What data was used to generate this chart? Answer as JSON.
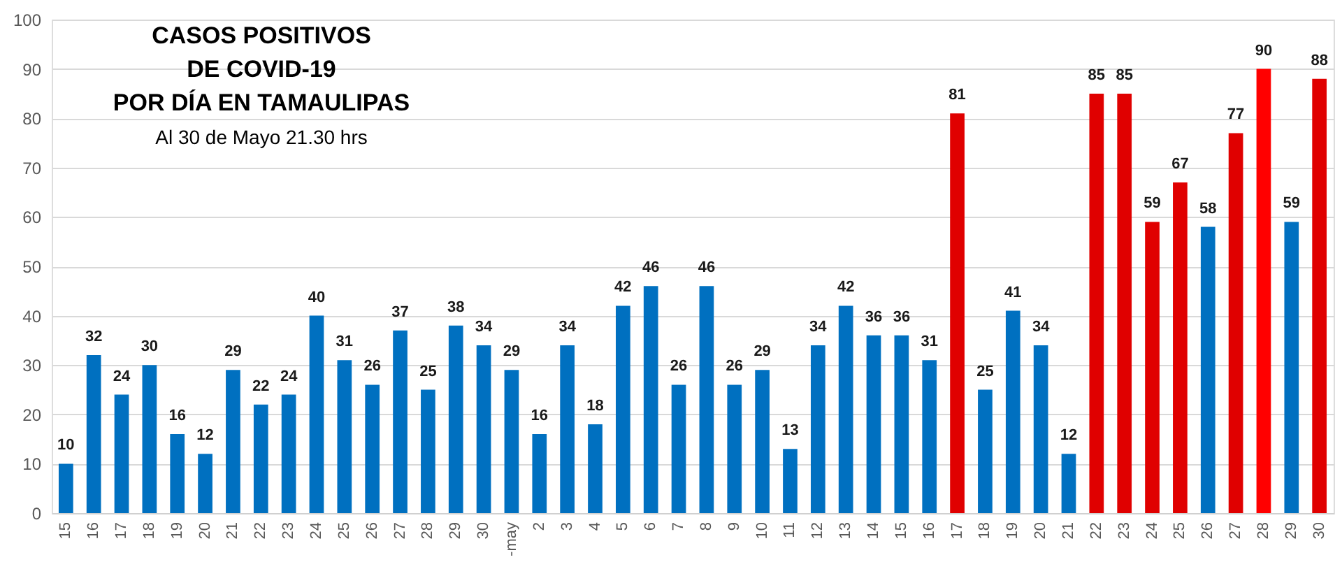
{
  "chart_data": {
    "type": "bar",
    "title": "CASOS POSITIVOS\nDE COVID-19\nPOR DÍA EN TAMAULIPAS",
    "subtitle": "Al 30 de Mayo 21.30 hrs",
    "categories": [
      "15",
      "16",
      "17",
      "18",
      "19",
      "20",
      "21",
      "22",
      "23",
      "24",
      "25",
      "26",
      "27",
      "28",
      "29",
      "30",
      "-may",
      "2",
      "3",
      "4",
      "5",
      "6",
      "7",
      "8",
      "9",
      "10",
      "11",
      "12",
      "13",
      "14",
      "15",
      "16",
      "17",
      "18",
      "19",
      "20",
      "21",
      "22",
      "23",
      "24",
      "25",
      "26",
      "27",
      "28",
      "29",
      "30"
    ],
    "values": [
      10,
      32,
      24,
      30,
      16,
      12,
      29,
      22,
      24,
      40,
      31,
      26,
      37,
      25,
      38,
      34,
      29,
      16,
      34,
      18,
      42,
      46,
      26,
      46,
      26,
      29,
      13,
      34,
      42,
      36,
      36,
      31,
      81,
      25,
      41,
      34,
      12,
      85,
      85,
      59,
      67,
      58,
      77,
      90,
      59,
      88
    ],
    "colors": [
      "#0070c0",
      "#0070c0",
      "#0070c0",
      "#0070c0",
      "#0070c0",
      "#0070c0",
      "#0070c0",
      "#0070c0",
      "#0070c0",
      "#0070c0",
      "#0070c0",
      "#0070c0",
      "#0070c0",
      "#0070c0",
      "#0070c0",
      "#0070c0",
      "#0070c0",
      "#0070c0",
      "#0070c0",
      "#0070c0",
      "#0070c0",
      "#0070c0",
      "#0070c0",
      "#0070c0",
      "#0070c0",
      "#0070c0",
      "#0070c0",
      "#0070c0",
      "#0070c0",
      "#0070c0",
      "#0070c0",
      "#0070c0",
      "#e00000",
      "#0070c0",
      "#0070c0",
      "#0070c0",
      "#0070c0",
      "#e00000",
      "#e00000",
      "#e00000",
      "#e00000",
      "#0070c0",
      "#e00000",
      "#ff0000",
      "#0070c0",
      "#e00000"
    ],
    "ylim": [
      0,
      100
    ],
    "yticks": [
      0,
      10,
      20,
      30,
      40,
      50,
      60,
      70,
      80,
      90,
      100
    ],
    "grid": "y",
    "data_labels": true
  }
}
